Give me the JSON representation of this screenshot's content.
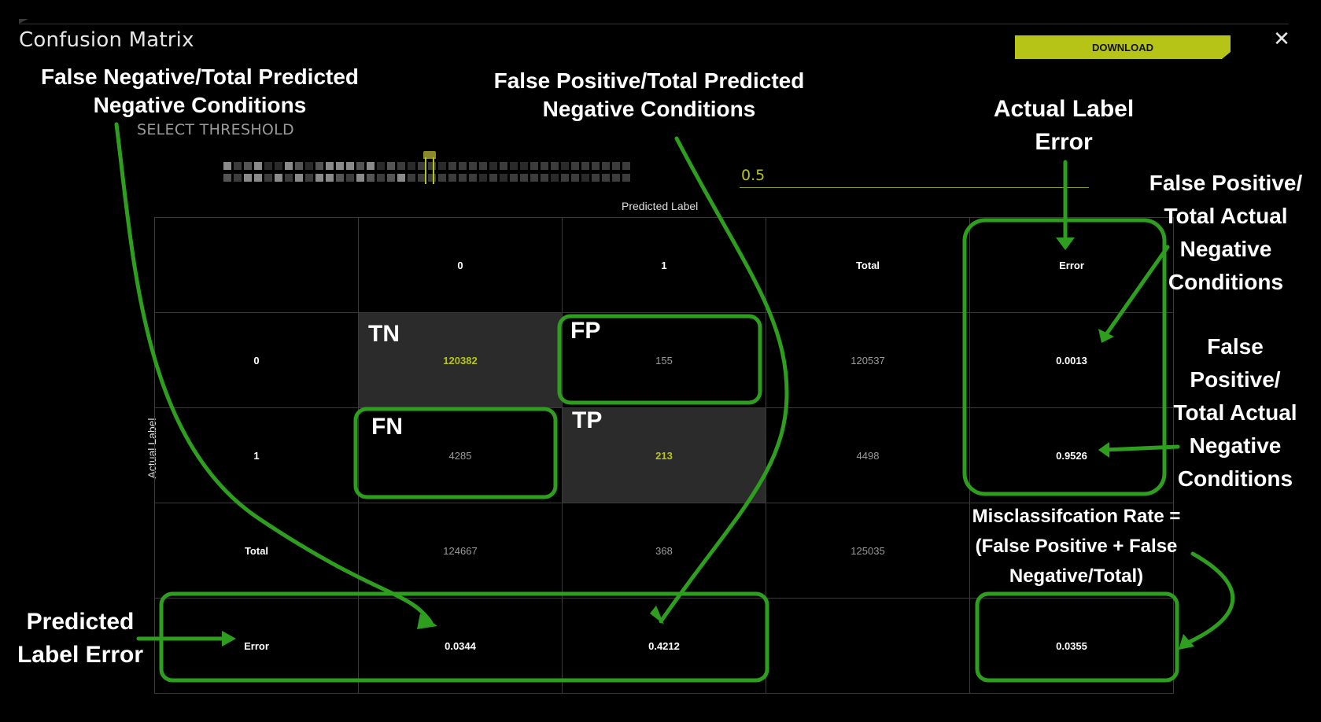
{
  "window": {
    "title": "Confusion Matrix",
    "download_label": "DOWNLOAD",
    "close_glyph": "✕"
  },
  "threshold": {
    "label": "SELECT THRESHOLD",
    "value": "0.5"
  },
  "matrix": {
    "predicted_axis_label": "Predicted Label",
    "actual_axis_label": "Actual Label",
    "header": [
      "",
      "0",
      "1",
      "Total",
      "Error"
    ],
    "rows": [
      [
        "0",
        "120382",
        "155",
        "120537",
        "0.0013"
      ],
      [
        "1",
        "4285",
        "213",
        "4498",
        "0.9526"
      ],
      [
        "Total",
        "124667",
        "368",
        "125035",
        ""
      ],
      [
        "Error",
        "0.0344",
        "0.4212",
        "",
        "0.0355"
      ]
    ]
  },
  "cell_tags": {
    "tn": "TN",
    "fp": "FP",
    "fn": "FN",
    "tp": "TP"
  },
  "annotations": {
    "fn_over_pred_neg": "False Negative/Total Predicted Negative Conditions",
    "fp_over_pred_neg": "False Positive/Total Predicted Negative Conditions",
    "actual_label_error": "Actual Label Error",
    "fp_over_actual_neg_1": "False Positive/ Total Actual Negative Conditions",
    "fp_over_actual_neg_2": "False Positive/ Total Actual Negative Conditions",
    "misclassification": "Misclassifcation Rate = (False Positive + False Negative/Total)",
    "predicted_label_error": "Predicted Label Error"
  },
  "colors": {
    "accent": "#b5c417",
    "annotation_green": "#2e9e1f",
    "background": "#000000",
    "diag_fill": "#2b2b2b"
  }
}
